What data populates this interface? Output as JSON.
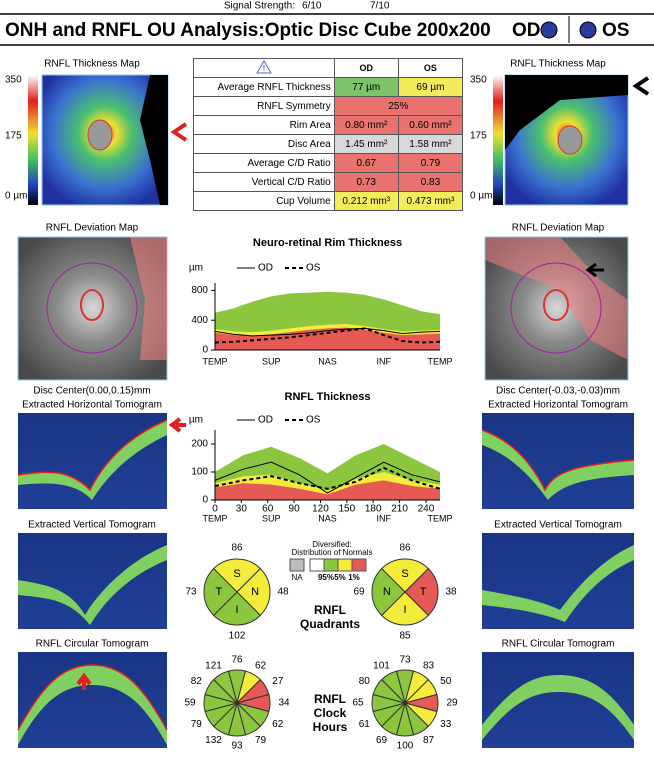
{
  "header": {
    "signal_strength": "Signal Strength:",
    "od_signal": "6/10",
    "os_signal": "7/10",
    "title": "ONH and RNFL OU Analysis:Optic Disc Cube 200x200",
    "od": "OD",
    "os": "OS"
  },
  "table": {
    "columns": [
      "OD",
      "OS"
    ],
    "rows": [
      [
        "Average RNFL Thickness",
        "77 µm",
        "69 µm"
      ],
      [
        "RNFL Symmetry",
        "25%"
      ],
      [
        "Rim Area",
        "0.80 mm²",
        "0.60 mm²"
      ],
      [
        "Disc Area",
        "1.45 mm²",
        "1.58 mm²"
      ],
      [
        "Average C/D Ratio",
        "0.67",
        "0.79"
      ],
      [
        "Vertical C/D Ratio",
        "0.73",
        "0.83"
      ],
      [
        "Cup Volume",
        "0.212 mm³",
        "0.473 mm³"
      ]
    ],
    "cell_colors": [
      [
        "#7cc36a",
        "#f3ec5a"
      ],
      [
        "#e8736e"
      ],
      [
        "#e8736e",
        "#e8736e"
      ],
      [
        "#d9d9d9",
        "#d9d9d9"
      ],
      [
        "#e8736e",
        "#e8736e"
      ],
      [
        "#e8736e",
        "#e8736e"
      ],
      [
        "#f3ec5a",
        "#f3ec5a"
      ]
    ]
  },
  "maps": {
    "thickness_title": "RNFL Thickness Map",
    "scale": [
      "350",
      "175",
      "0 µm"
    ],
    "deviation_title": "RNFL Deviation Map",
    "od_disc_center": "Disc Center(0.00,0.15)mm",
    "os_disc_center": "Disc Center(-0.03,-0.03)mm",
    "horizontal": "Extracted Horizontal Tomogram",
    "vertical": "Extracted Vertical Tomogram",
    "circular": "RNFL Circular Tomogram"
  },
  "chart_data": [
    {
      "type": "line",
      "title": "Neuro-retinal Rim Thickness",
      "y_label": "µm",
      "categories": [
        "TEMP",
        null,
        null,
        "SUP",
        null,
        null,
        "NAS",
        null,
        null,
        "INF",
        null,
        null,
        "TEMP"
      ],
      "ylim": [
        0,
        900
      ],
      "yticks": [
        0,
        400,
        800
      ],
      "bands": [
        {
          "color": "#8cc63f",
          "values": [
            500,
            560,
            650,
            720,
            760,
            770,
            780,
            770,
            740,
            680,
            600,
            520,
            480
          ]
        },
        {
          "color": "#f3ec3a",
          "values": [
            280,
            250,
            240,
            260,
            290,
            320,
            340,
            350,
            320,
            280,
            250,
            260,
            270
          ]
        },
        {
          "color": "#e65a55",
          "values": [
            230,
            200,
            190,
            210,
            240,
            270,
            290,
            300,
            270,
            230,
            200,
            210,
            220
          ]
        }
      ],
      "series": [
        {
          "name": "OD",
          "color": "#000000",
          "dash": "solid",
          "values": [
            250,
            210,
            190,
            200,
            210,
            230,
            260,
            280,
            290,
            260,
            220,
            240,
            250
          ]
        },
        {
          "name": "OS",
          "color": "#000000",
          "dash": "dashed",
          "values": [
            100,
            110,
            130,
            150,
            170,
            200,
            230,
            260,
            290,
            200,
            120,
            100,
            110
          ]
        }
      ]
    },
    {
      "type": "line",
      "title": "RNFL Thickness",
      "y_label": "µm",
      "x": [
        0,
        32,
        64,
        96,
        128,
        160,
        192,
        224,
        256
      ],
      "xlim": [
        0,
        256
      ],
      "xticks": [
        0,
        30,
        60,
        90,
        120,
        150,
        180,
        210,
        240
      ],
      "region_labels": [
        {
          "value": 0,
          "label": "TEMP"
        },
        {
          "value": 64,
          "label": "SUP"
        },
        {
          "value": 128,
          "label": "NAS"
        },
        {
          "value": 192,
          "label": "INF"
        },
        {
          "value": 256,
          "label": "TEMP"
        }
      ],
      "ylim": [
        0,
        250
      ],
      "yticks": [
        0,
        100,
        200
      ],
      "bands": [
        {
          "color": "#8cc63f",
          "values": [
            100,
            160,
            190,
            150,
            95,
            160,
            200,
            150,
            100
          ]
        },
        {
          "color": "#f3ec3a",
          "values": [
            60,
            85,
            90,
            60,
            35,
            75,
            100,
            70,
            55
          ]
        },
        {
          "color": "#e65a55",
          "values": [
            45,
            60,
            55,
            40,
            20,
            55,
            70,
            50,
            40
          ]
        }
      ],
      "series": [
        {
          "name": "OD",
          "color": "#000000",
          "dash": "solid",
          "values": [
            70,
            110,
            135,
            90,
            25,
            80,
            135,
            90,
            65
          ]
        },
        {
          "name": "OS",
          "color": "#000000",
          "dash": "dashed",
          "values": [
            50,
            70,
            85,
            60,
            40,
            65,
            115,
            70,
            40
          ]
        }
      ]
    },
    {
      "type": "quadrant",
      "title": "RNFL Quadrants",
      "legend": {
        "title": "Diversified:",
        "subtitle": "Distribution of Normals",
        "items": [
          {
            "label": "NA",
            "color": "#bdbdbd"
          },
          {
            "label": "95%",
            "color": "#8cc63f"
          },
          {
            "label": "5%",
            "color": "#f3ec3a"
          },
          {
            "label": "1%",
            "color": "#e65a55"
          }
        ]
      },
      "od": {
        "labels": [
          "S",
          "N",
          "I",
          "T"
        ],
        "values": [
          86,
          48,
          102,
          73
        ],
        "colors": [
          "#f3ec3a",
          "#f3ec3a",
          "#8cc63f",
          "#8cc63f"
        ]
      },
      "os": {
        "labels": [
          "S",
          "T",
          "I",
          "N"
        ],
        "values": [
          86,
          38,
          85,
          69
        ],
        "colors": [
          "#f3ec3a",
          "#e65a55",
          "#f3ec3a",
          "#8cc63f"
        ]
      }
    },
    {
      "type": "clock",
      "title": "RNFL Clock Hours",
      "od": {
        "values": [
          76,
          62,
          27,
          34,
          62,
          79,
          93,
          132,
          79,
          59,
          82,
          121
        ],
        "colors": [
          "#8cc63f",
          "#f3ec3a",
          "#e65a55",
          "#e65a55",
          "#8cc63f",
          "#8cc63f",
          "#8cc63f",
          "#8cc63f",
          "#8cc63f",
          "#8cc63f",
          "#8cc63f",
          "#8cc63f"
        ]
      },
      "os": {
        "values": [
          73,
          83,
          50,
          29,
          33,
          87,
          100,
          69,
          61,
          65,
          80,
          101
        ],
        "colors": [
          "#8cc63f",
          "#f3ec3a",
          "#f3ec3a",
          "#e65a55",
          "#f3ec3a",
          "#8cc63f",
          "#8cc63f",
          "#8cc63f",
          "#8cc63f",
          "#8cc63f",
          "#8cc63f",
          "#8cc63f"
        ]
      }
    }
  ]
}
